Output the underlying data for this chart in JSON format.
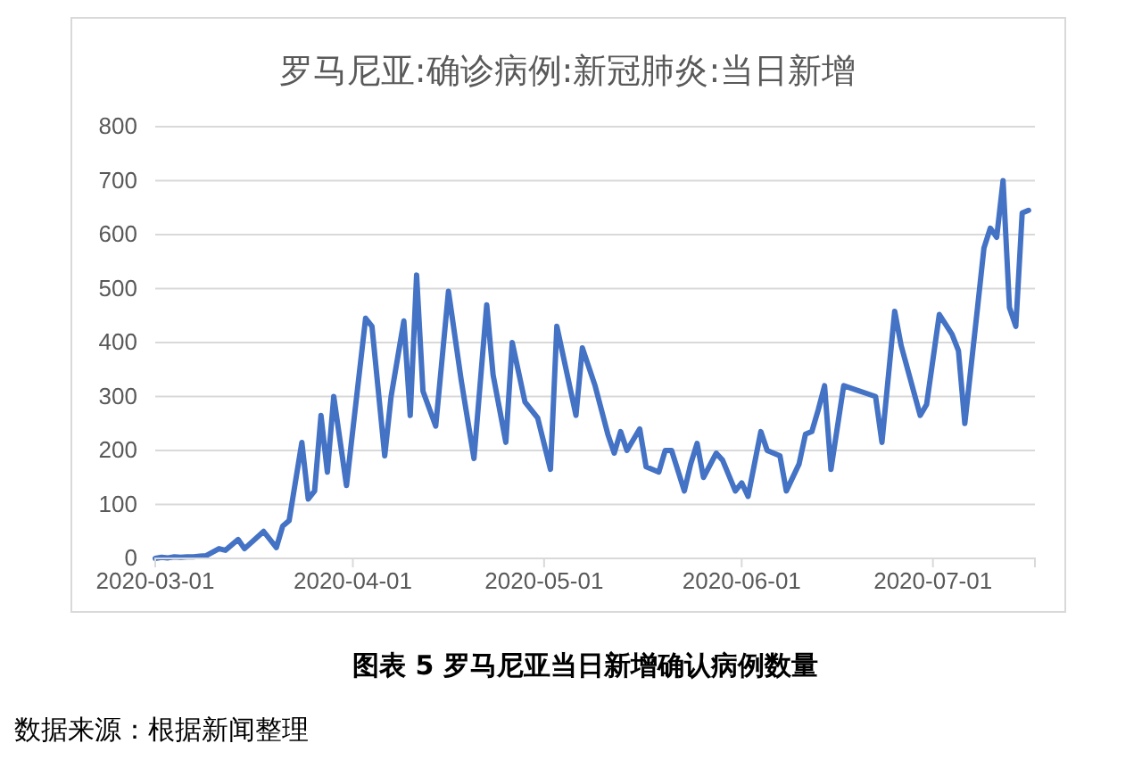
{
  "chart_data": {
    "type": "line",
    "title": "罗马尼亚:确诊病例:新冠肺炎:当日新增",
    "annotations": [
      "图表 5  罗马尼亚当日新增确认病例数量",
      "数据来源：根据新闻整理"
    ],
    "series": [
      {
        "color": "#4472c4",
        "x": [
          "2020-03-01",
          "2020-03-02",
          "2020-03-03",
          "2020-03-04",
          "2020-03-05",
          "2020-03-06",
          "2020-03-07",
          "2020-03-08",
          "2020-03-09",
          "2020-03-11",
          "2020-03-12",
          "2020-03-14",
          "2020-03-15",
          "2020-03-18",
          "2020-03-20",
          "2020-03-21",
          "2020-03-22",
          "2020-03-24",
          "2020-03-25",
          "2020-03-26",
          "2020-03-27",
          "2020-03-28",
          "2020-03-29",
          "2020-03-31",
          "2020-04-03",
          "2020-04-04",
          "2020-04-06",
          "2020-04-07",
          "2020-04-09",
          "2020-04-10",
          "2020-04-11",
          "2020-04-12",
          "2020-04-14",
          "2020-04-16",
          "2020-04-18",
          "2020-04-20",
          "2020-04-22",
          "2020-04-23",
          "2020-04-25",
          "2020-04-26",
          "2020-04-28",
          "2020-04-30",
          "2020-05-02",
          "2020-05-03",
          "2020-05-06",
          "2020-05-07",
          "2020-05-09",
          "2020-05-11",
          "2020-05-12",
          "2020-05-13",
          "2020-05-14",
          "2020-05-16",
          "2020-05-17",
          "2020-05-19",
          "2020-05-20",
          "2020-05-21",
          "2020-05-23",
          "2020-05-24",
          "2020-05-25",
          "2020-05-26",
          "2020-05-28",
          "2020-05-29",
          "2020-05-31",
          "2020-06-01",
          "2020-06-02",
          "2020-06-04",
          "2020-06-05",
          "2020-06-07",
          "2020-06-08",
          "2020-06-10",
          "2020-06-11",
          "2020-06-12",
          "2020-06-13",
          "2020-06-14",
          "2020-06-15",
          "2020-06-17",
          "2020-06-22",
          "2020-06-23",
          "2020-06-25",
          "2020-06-26",
          "2020-06-29",
          "2020-06-30",
          "2020-07-02",
          "2020-07-04",
          "2020-07-05",
          "2020-07-06",
          "2020-07-08",
          "2020-07-09",
          "2020-07-10",
          "2020-07-11",
          "2020-07-12",
          "2020-07-13",
          "2020-07-14",
          "2020-07-15",
          "2020-07-16"
        ],
        "values": [
          0,
          2,
          1,
          3,
          2,
          3,
          3,
          4,
          5,
          18,
          15,
          35,
          18,
          50,
          20,
          60,
          70,
          215,
          110,
          125,
          265,
          160,
          300,
          135,
          445,
          430,
          190,
          300,
          440,
          265,
          525,
          310,
          245,
          495,
          330,
          185,
          470,
          340,
          215,
          400,
          290,
          260,
          165,
          430,
          265,
          390,
          320,
          230,
          195,
          235,
          200,
          240,
          170,
          160,
          200,
          200,
          125,
          175,
          213,
          150,
          195,
          182,
          125,
          140,
          115,
          235,
          200,
          190,
          125,
          175,
          230,
          235,
          275,
          320,
          165,
          320,
          300,
          215,
          458,
          395,
          265,
          285,
          452,
          415,
          385,
          250,
          465,
          575,
          612,
          595,
          700,
          465,
          430,
          640,
          645
        ]
      }
    ],
    "xlim": [
      "2020-03-01",
      "2020-07-17"
    ],
    "xticks": [
      "2020-03-01",
      "2020-04-01",
      "2020-05-01",
      "2020-06-01",
      "2020-07-01"
    ],
    "ylim": [
      0,
      800
    ],
    "yticks": [
      0,
      100,
      200,
      300,
      400,
      500,
      600,
      700,
      800
    ],
    "grid": "y"
  }
}
